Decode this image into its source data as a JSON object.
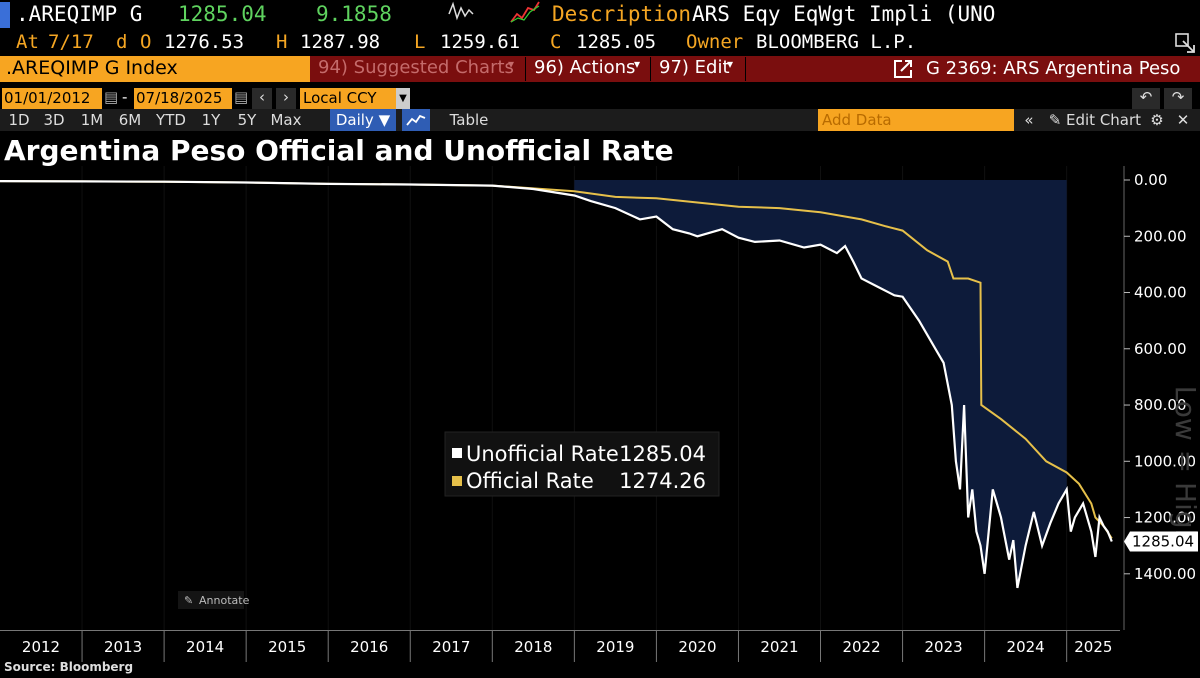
{
  "header": {
    "ticker": ".AREQIMP G",
    "last": "1285.04",
    "change": "9.1858",
    "desc_label": "Description",
    "desc_value": "ARS Eqy EqWgt Impli (UNO",
    "at_label": "At",
    "at_date": "7/17",
    "d_label": "d",
    "o_label": "O",
    "open": "1276.53",
    "h_label": "H",
    "high": "1287.98",
    "l_label": "L",
    "low": "1259.61",
    "c_label": "C",
    "close": "1285.05",
    "owner_label": "Owner",
    "owner_value": "BLOOMBERG L.P."
  },
  "menubar": {
    "security": ".AREQIMP G Index",
    "suggested": "94) Suggested Charts",
    "actions": "96) Actions",
    "edit": "97) Edit",
    "right_title": "G 2369: ARS Argentina Peso"
  },
  "controls": {
    "start_date": "01/01/2012",
    "end_date": "07/18/2025",
    "currency": "Local CCY",
    "add_data_placeholder": "Add Data",
    "edit_chart": "Edit Chart"
  },
  "tabs": [
    "1D",
    "3D",
    "1M",
    "6M",
    "YTD",
    "1Y",
    "5Y",
    "Max"
  ],
  "period": "Daily ▼",
  "table_label": "Table",
  "annotate": "Annotate",
  "source": "Source: Bloomberg",
  "colors": {
    "official": "#e6c04a",
    "unofficial": "#ffffff",
    "fill": "#0d1b3a",
    "accent": "#f7a521"
  },
  "chart_data": {
    "type": "line",
    "title": "Argentina Peso Official and Unofficial Rate",
    "ylabel": "Low = High",
    "y_inverted": true,
    "ylim": [
      0,
      1550
    ],
    "xlim": [
      2012.0,
      2025.65
    ],
    "x_tick_labels": [
      "2012",
      "2013",
      "2014",
      "2015",
      "2016",
      "2017",
      "2018",
      "2019",
      "2020",
      "2021",
      "2022",
      "2023",
      "2024",
      "2025"
    ],
    "y_ticks": [
      0,
      200,
      400,
      600,
      800,
      1000,
      1200,
      1400
    ],
    "y_tick_labels": [
      "0.00",
      "200.00",
      "400.00",
      "600.00",
      "800.00",
      "1000.00",
      "1200.00",
      "1400.00"
    ],
    "last_value_label": "1285.04",
    "legend": {
      "position": "center",
      "entries": [
        {
          "name": "Unofficial Rate",
          "value": "1285.04"
        },
        {
          "name": "Official Rate",
          "value": "1274.26"
        }
      ]
    },
    "series": [
      {
        "name": "Official Rate",
        "x": [
          2012.0,
          2013.0,
          2014.0,
          2015.0,
          2016.0,
          2017.0,
          2018.0,
          2018.5,
          2019.0,
          2019.5,
          2020.0,
          2020.5,
          2021.0,
          2021.5,
          2022.0,
          2022.5,
          2022.8,
          2023.0,
          2023.3,
          2023.55,
          2023.62,
          2023.63,
          2023.8,
          2023.95,
          2023.96,
          2024.2,
          2024.5,
          2024.75,
          2025.0,
          2025.15,
          2025.3,
          2025.35,
          2025.45,
          2025.55
        ],
        "y": [
          4,
          5,
          6,
          9,
          14,
          16,
          20,
          30,
          40,
          60,
          65,
          80,
          95,
          100,
          115,
          140,
          165,
          180,
          250,
          290,
          350,
          350,
          350,
          365,
          800,
          850,
          920,
          1000,
          1040,
          1080,
          1150,
          1200,
          1230,
          1274
        ]
      },
      {
        "name": "Unofficial Rate",
        "x": [
          2012.0,
          2013.0,
          2014.0,
          2015.0,
          2016.0,
          2017.0,
          2018.0,
          2018.5,
          2019.0,
          2019.2,
          2019.5,
          2019.8,
          2020.0,
          2020.2,
          2020.4,
          2020.5,
          2020.8,
          2021.0,
          2021.2,
          2021.5,
          2021.8,
          2022.0,
          2022.2,
          2022.3,
          2022.4,
          2022.5,
          2022.7,
          2022.9,
          2023.0,
          2023.2,
          2023.4,
          2023.5,
          2023.6,
          2023.65,
          2023.7,
          2023.75,
          2023.8,
          2023.85,
          2023.9,
          2023.95,
          2024.0,
          2024.05,
          2024.1,
          2024.2,
          2024.3,
          2024.35,
          2024.4,
          2024.5,
          2024.6,
          2024.7,
          2024.8,
          2024.9,
          2025.0,
          2025.05,
          2025.1,
          2025.2,
          2025.3,
          2025.35,
          2025.4,
          2025.45,
          2025.5,
          2025.55
        ],
        "y": [
          4,
          5,
          6,
          9,
          14,
          16,
          20,
          32,
          55,
          75,
          100,
          140,
          130,
          175,
          190,
          200,
          175,
          205,
          220,
          215,
          240,
          230,
          260,
          235,
          290,
          350,
          380,
          410,
          415,
          500,
          600,
          650,
          800,
          1000,
          1100,
          800,
          1200,
          1100,
          1250,
          1300,
          1400,
          1250,
          1100,
          1200,
          1350,
          1280,
          1450,
          1300,
          1180,
          1300,
          1220,
          1150,
          1100,
          1250,
          1200,
          1150,
          1250,
          1340,
          1200,
          1230,
          1250,
          1285
        ]
      }
    ]
  }
}
